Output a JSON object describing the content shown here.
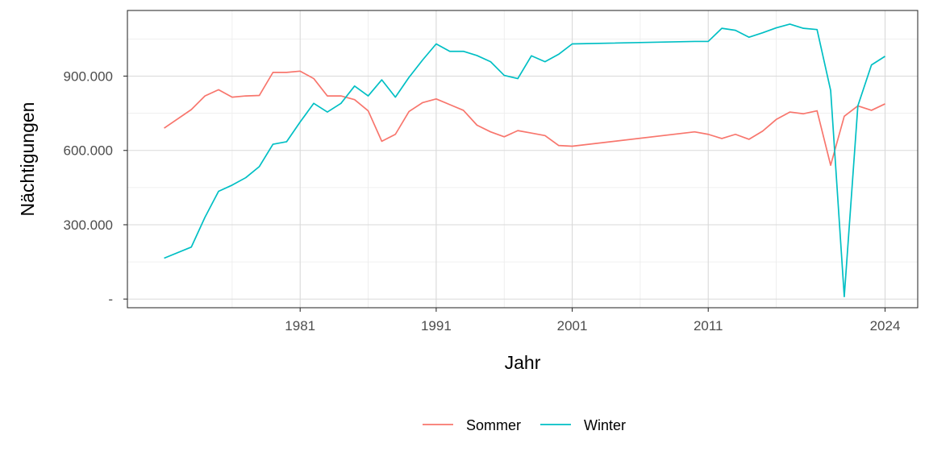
{
  "chart_data": {
    "type": "line",
    "xlabel": "Jahr",
    "ylabel": "Nächtigungen",
    "xlim": [
      1968.5,
      1926.5
    ],
    "ylim": [
      -35000,
      1165000
    ],
    "grid": true,
    "legend_position": "bottom",
    "x_ticks": [
      1981,
      1991,
      2001,
      2011,
      2024
    ],
    "x_minor_ticks": [
      1976,
      1986,
      1996,
      2006,
      2016
    ],
    "y_ticks": [
      0,
      300000,
      600000,
      900000
    ],
    "y_tick_labels": [
      "-",
      "300.000",
      "600.000",
      "900.000"
    ],
    "y_minor_ticks": [
      150000,
      450000,
      750000,
      1050000
    ],
    "colors": {
      "Sommer": "#f8766d",
      "Winter": "#00bfc4"
    },
    "series": [
      {
        "name": "Sommer",
        "color": "#f8766d",
        "x": [
          1971,
          1973,
          1974,
          1975,
          1976,
          1977,
          1978,
          1979,
          1980,
          1981,
          1982,
          1983,
          1984,
          1985,
          1986,
          1987,
          1988,
          1989,
          1990,
          1991,
          1992,
          1993,
          1994,
          1995,
          1996,
          1997,
          1998,
          1999,
          2000,
          2001,
          2010,
          2011,
          2012,
          2013,
          2014,
          2015,
          2016,
          2017,
          2018,
          2019,
          2020,
          2021,
          2022,
          2023,
          2024
        ],
        "y": [
          690000,
          765000,
          820000,
          845000,
          815000,
          820000,
          822000,
          915000,
          915000,
          920000,
          890000,
          820000,
          820000,
          805000,
          760000,
          637000,
          665000,
          757000,
          793000,
          808000,
          785000,
          762000,
          702000,
          675000,
          655000,
          680000,
          670000,
          660000,
          620000,
          617000,
          675000,
          665000,
          648000,
          665000,
          645000,
          678000,
          725000,
          755000,
          748000,
          760000,
          540000,
          738000,
          780000,
          762000,
          788000
        ]
      },
      {
        "name": "Winter",
        "color": "#00bfc4",
        "x": [
          1971,
          1973,
          1974,
          1975,
          1976,
          1977,
          1978,
          1979,
          1980,
          1981,
          1982,
          1983,
          1984,
          1985,
          1986,
          1987,
          1988,
          1989,
          1990,
          1991,
          1992,
          1993,
          1994,
          1995,
          1996,
          1997,
          1998,
          1999,
          2000,
          2001,
          2010,
          2011,
          2012,
          2013,
          2014,
          2015,
          2016,
          2017,
          2018,
          2019,
          2020,
          2021,
          2022,
          2023,
          2024
        ],
        "y": [
          165000,
          210000,
          330000,
          435000,
          460000,
          490000,
          535000,
          625000,
          635000,
          715000,
          790000,
          755000,
          790000,
          860000,
          820000,
          885000,
          815000,
          895000,
          965000,
          1030000,
          1000000,
          1000000,
          983000,
          958000,
          903000,
          890000,
          982000,
          958000,
          988000,
          1030000,
          1040000,
          1040000,
          1093000,
          1085000,
          1057000,
          1075000,
          1095000,
          1110000,
          1093000,
          1088000,
          842000,
          10000,
          780000,
          945000,
          980000
        ]
      }
    ]
  }
}
